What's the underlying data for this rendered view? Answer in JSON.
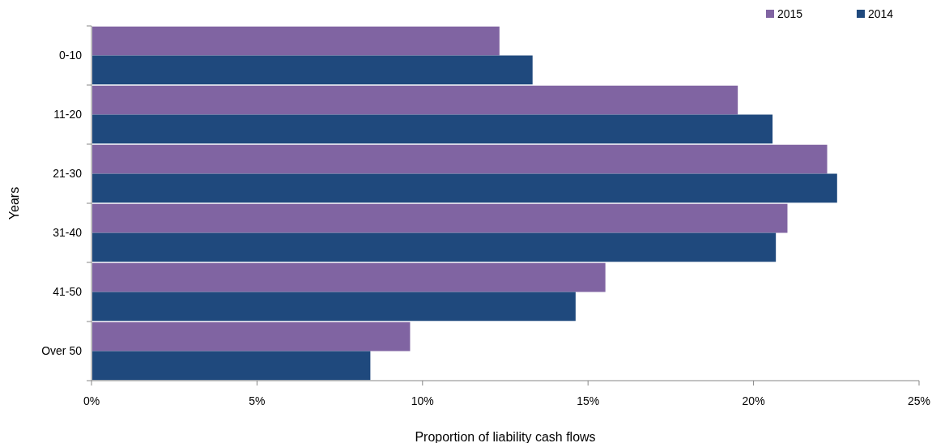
{
  "chart_data": {
    "type": "bar",
    "orientation": "horizontal",
    "xlabel": "Proportion of liability cash flows",
    "ylabel": "Years",
    "categories": [
      "0-10",
      "11-20",
      "21-30",
      "31-40",
      "41-50",
      "Over 50"
    ],
    "series": [
      {
        "name": "2015",
        "color": "#8064a2",
        "values": [
          12.3,
          19.5,
          22.2,
          21.0,
          15.5,
          9.6
        ]
      },
      {
        "name": "2014",
        "color": "#1f497d",
        "values": [
          13.3,
          20.55,
          22.5,
          20.65,
          14.6,
          8.4
        ]
      }
    ],
    "xlim": [
      0,
      25
    ],
    "xticks": [
      {
        "value": 0,
        "label": "0%"
      },
      {
        "value": 5,
        "label": "5%"
      },
      {
        "value": 10,
        "label": "10%"
      },
      {
        "value": 15,
        "label": "15%"
      },
      {
        "value": 20,
        "label": "20%"
      },
      {
        "value": 25,
        "label": "25%"
      }
    ],
    "legend": "top right",
    "grid": false
  }
}
